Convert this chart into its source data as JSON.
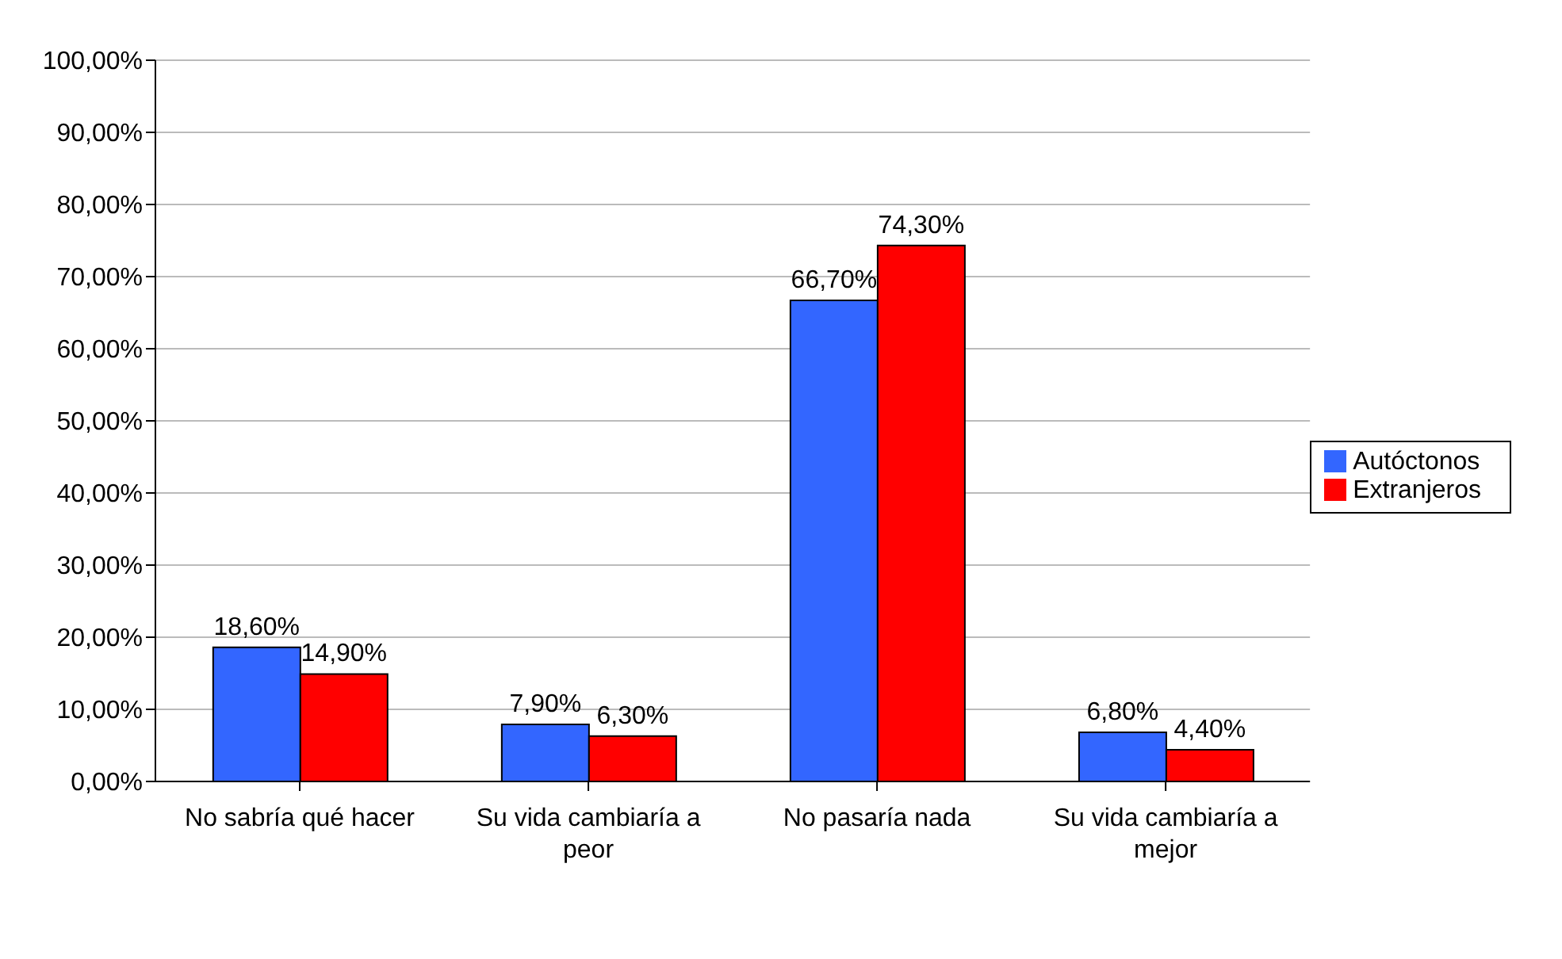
{
  "chart_data": {
    "type": "bar",
    "categories": [
      "No sabría qué hacer",
      "Su vida cambiaría a peor",
      "No pasaría nada",
      "Su vida cambiaría a mejor"
    ],
    "series": [
      {
        "name": "Autóctonos",
        "color": "#3366ff",
        "values": [
          18.6,
          7.9,
          66.7,
          6.8
        ],
        "value_labels": [
          "18,60%",
          "7,90%",
          "66,70%",
          "6,80%"
        ]
      },
      {
        "name": "Extranjeros",
        "color": "#ff0000",
        "values": [
          14.9,
          6.3,
          74.3,
          4.4
        ],
        "value_labels": [
          "14,90%",
          "6,30%",
          "74,30%",
          "4,40%"
        ]
      }
    ],
    "ylim": [
      0,
      100
    ],
    "yticks": [
      {
        "value": 0,
        "label": "0,00%"
      },
      {
        "value": 10,
        "label": "10,00%"
      },
      {
        "value": 20,
        "label": "20,00%"
      },
      {
        "value": 30,
        "label": "30,00%"
      },
      {
        "value": 40,
        "label": "40,00%"
      },
      {
        "value": 50,
        "label": "50,00%"
      },
      {
        "value": 60,
        "label": "60,00%"
      },
      {
        "value": 70,
        "label": "70,00%"
      },
      {
        "value": 80,
        "label": "80,00%"
      },
      {
        "value": 90,
        "label": "90,00%"
      },
      {
        "value": 100,
        "label": "100,00%"
      }
    ],
    "grid": "y",
    "legend": "right"
  }
}
